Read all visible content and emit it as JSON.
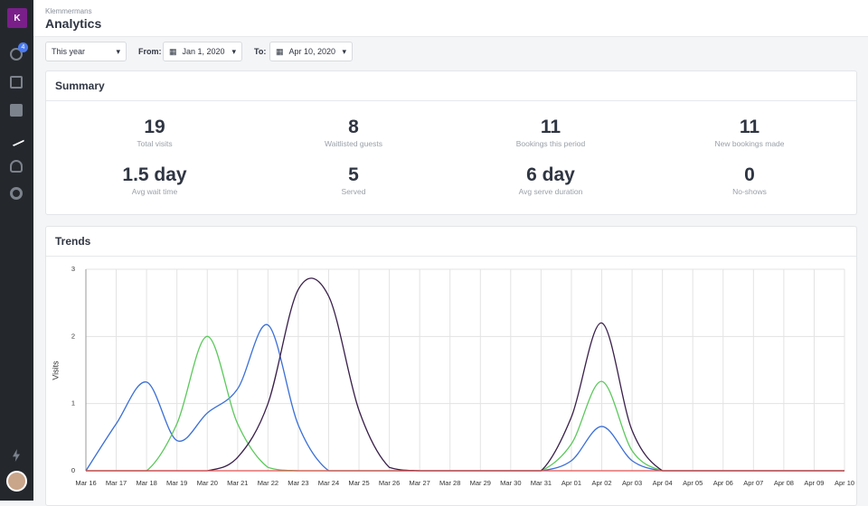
{
  "header": {
    "org": "Klemmermans",
    "title": "Analytics"
  },
  "sidebar": {
    "logo": "K",
    "badge": 4
  },
  "filters": {
    "range": "This year",
    "from_label": "From:",
    "from": "Jan 1, 2020",
    "to_label": "To:",
    "to": "Apr 10, 2020"
  },
  "summary": {
    "title": "Summary",
    "stats": [
      {
        "value": 19,
        "label": "Total visits"
      },
      {
        "value": 8,
        "label": "Waitlisted guests"
      },
      {
        "value": 11,
        "label": "Bookings this period"
      },
      {
        "value": 11,
        "label": "New bookings made"
      },
      {
        "value": "1.5 day",
        "label": "Avg wait time"
      },
      {
        "value": 5,
        "label": "Served"
      },
      {
        "value": "6 day",
        "label": "Avg serve duration"
      },
      {
        "value": 0,
        "label": "No-shows"
      }
    ]
  },
  "chart_data": {
    "type": "line",
    "title": "Trends",
    "y_label": "Visits",
    "categories": [
      "Mar 16",
      "Mar 17",
      "Mar 18",
      "Mar 19",
      "Mar 20",
      "Mar 21",
      "Mar 22",
      "Mar 23",
      "Mar 24",
      "Mar 25",
      "Mar 26",
      "Mar 27",
      "Mar 28",
      "Mar 29",
      "Mar 30",
      "Mar 31",
      "Apr 01",
      "Apr 02",
      "Apr 03",
      "Apr 04",
      "Apr 05",
      "Apr 06",
      "Apr 07",
      "Apr 08",
      "Apr 09",
      "Apr 10"
    ],
    "series": [
      {
        "color": "#3b6fd6",
        "values": [
          0,
          0.7,
          1.32,
          0.45,
          0.86,
          1.22,
          2.17,
          0.68,
          0,
          0,
          0,
          0,
          0,
          0,
          0,
          0,
          0.15,
          0.66,
          0.15,
          0,
          0,
          0,
          0,
          0,
          0,
          0
        ]
      },
      {
        "color": "#5cc85c",
        "values": [
          0,
          0,
          0,
          0.7,
          2.0,
          0.7,
          0.05,
          0,
          0,
          0,
          0,
          0,
          0,
          0,
          0,
          0,
          0.4,
          1.33,
          0.3,
          0,
          0,
          0,
          0,
          0,
          0,
          0
        ]
      },
      {
        "color": "#3a1f4a",
        "values": [
          0,
          0,
          0,
          0,
          0,
          0.2,
          1.0,
          2.7,
          2.6,
          0.9,
          0.05,
          0,
          0,
          0,
          0,
          0,
          0.8,
          2.2,
          0.6,
          0,
          0,
          0,
          0,
          0,
          0,
          0
        ]
      },
      {
        "color": "#e05050",
        "values": [
          0,
          0,
          0,
          0,
          0,
          0,
          0,
          0,
          0,
          0,
          0,
          0,
          0,
          0,
          0,
          0,
          0,
          0,
          0,
          0,
          0,
          0,
          0,
          0,
          0,
          0
        ]
      }
    ],
    "ylim": [
      0,
      3
    ],
    "yticks": [
      0,
      1,
      2,
      3
    ],
    "grid": true
  }
}
